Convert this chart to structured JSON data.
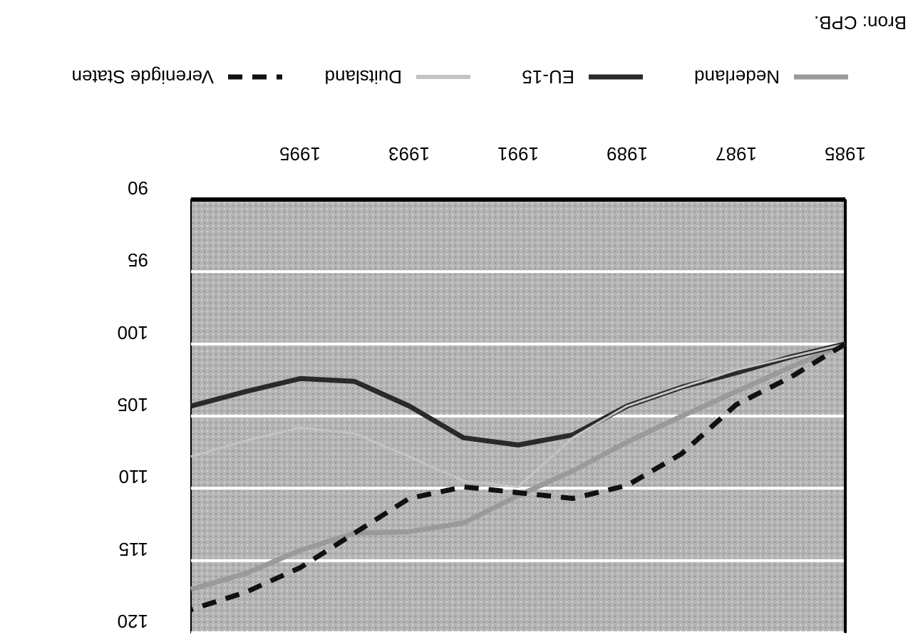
{
  "chart_data": {
    "type": "line",
    "x": [
      1985,
      1986,
      1987,
      1988,
      1989,
      1990,
      1991,
      1992,
      1993,
      1994,
      1995,
      1996,
      1997
    ],
    "xlim": [
      1997,
      1985
    ],
    "xticks": [
      1985,
      1987,
      1989,
      1991,
      1993,
      1995
    ],
    "ylim": [
      120,
      90
    ],
    "yticks": [
      90,
      95,
      100,
      105,
      110,
      115,
      120
    ],
    "grid": "y",
    "legend": "top",
    "marker": "none",
    "series": [
      {
        "name": "Nederland",
        "color": "#9a9a9a",
        "line_style": "solid",
        "values": [
          100,
          101.6,
          103.3,
          105.0,
          106.8,
          108.8,
          110.5,
          112.4,
          113.0,
          113.1,
          114.3,
          115.9,
          117.0
        ]
      },
      {
        "name": "EU-15",
        "color": "#2a2a2a",
        "line_style": "solid",
        "values": [
          100,
          100.9,
          102.0,
          103.0,
          104.3,
          106.3,
          107.0,
          106.5,
          104.3,
          102.6,
          102.4,
          103.3,
          104.3
        ]
      },
      {
        "name": "Duitsland",
        "color": "#c4c4c4",
        "line_style": "solid",
        "values": [
          100,
          100.9,
          101.8,
          103.0,
          104.3,
          106.5,
          109.9,
          109.5,
          107.8,
          106.2,
          105.8,
          106.7,
          107.8
        ]
      },
      {
        "name": "Verenigde Staten",
        "color": "#111111",
        "line_style": "dashed",
        "values": [
          100,
          102.3,
          104.2,
          107.6,
          109.8,
          110.7,
          110.3,
          109.9,
          110.7,
          113.1,
          115.5,
          117.2,
          118.4
        ]
      }
    ],
    "annotations": [
      "Bron: CPB."
    ]
  }
}
